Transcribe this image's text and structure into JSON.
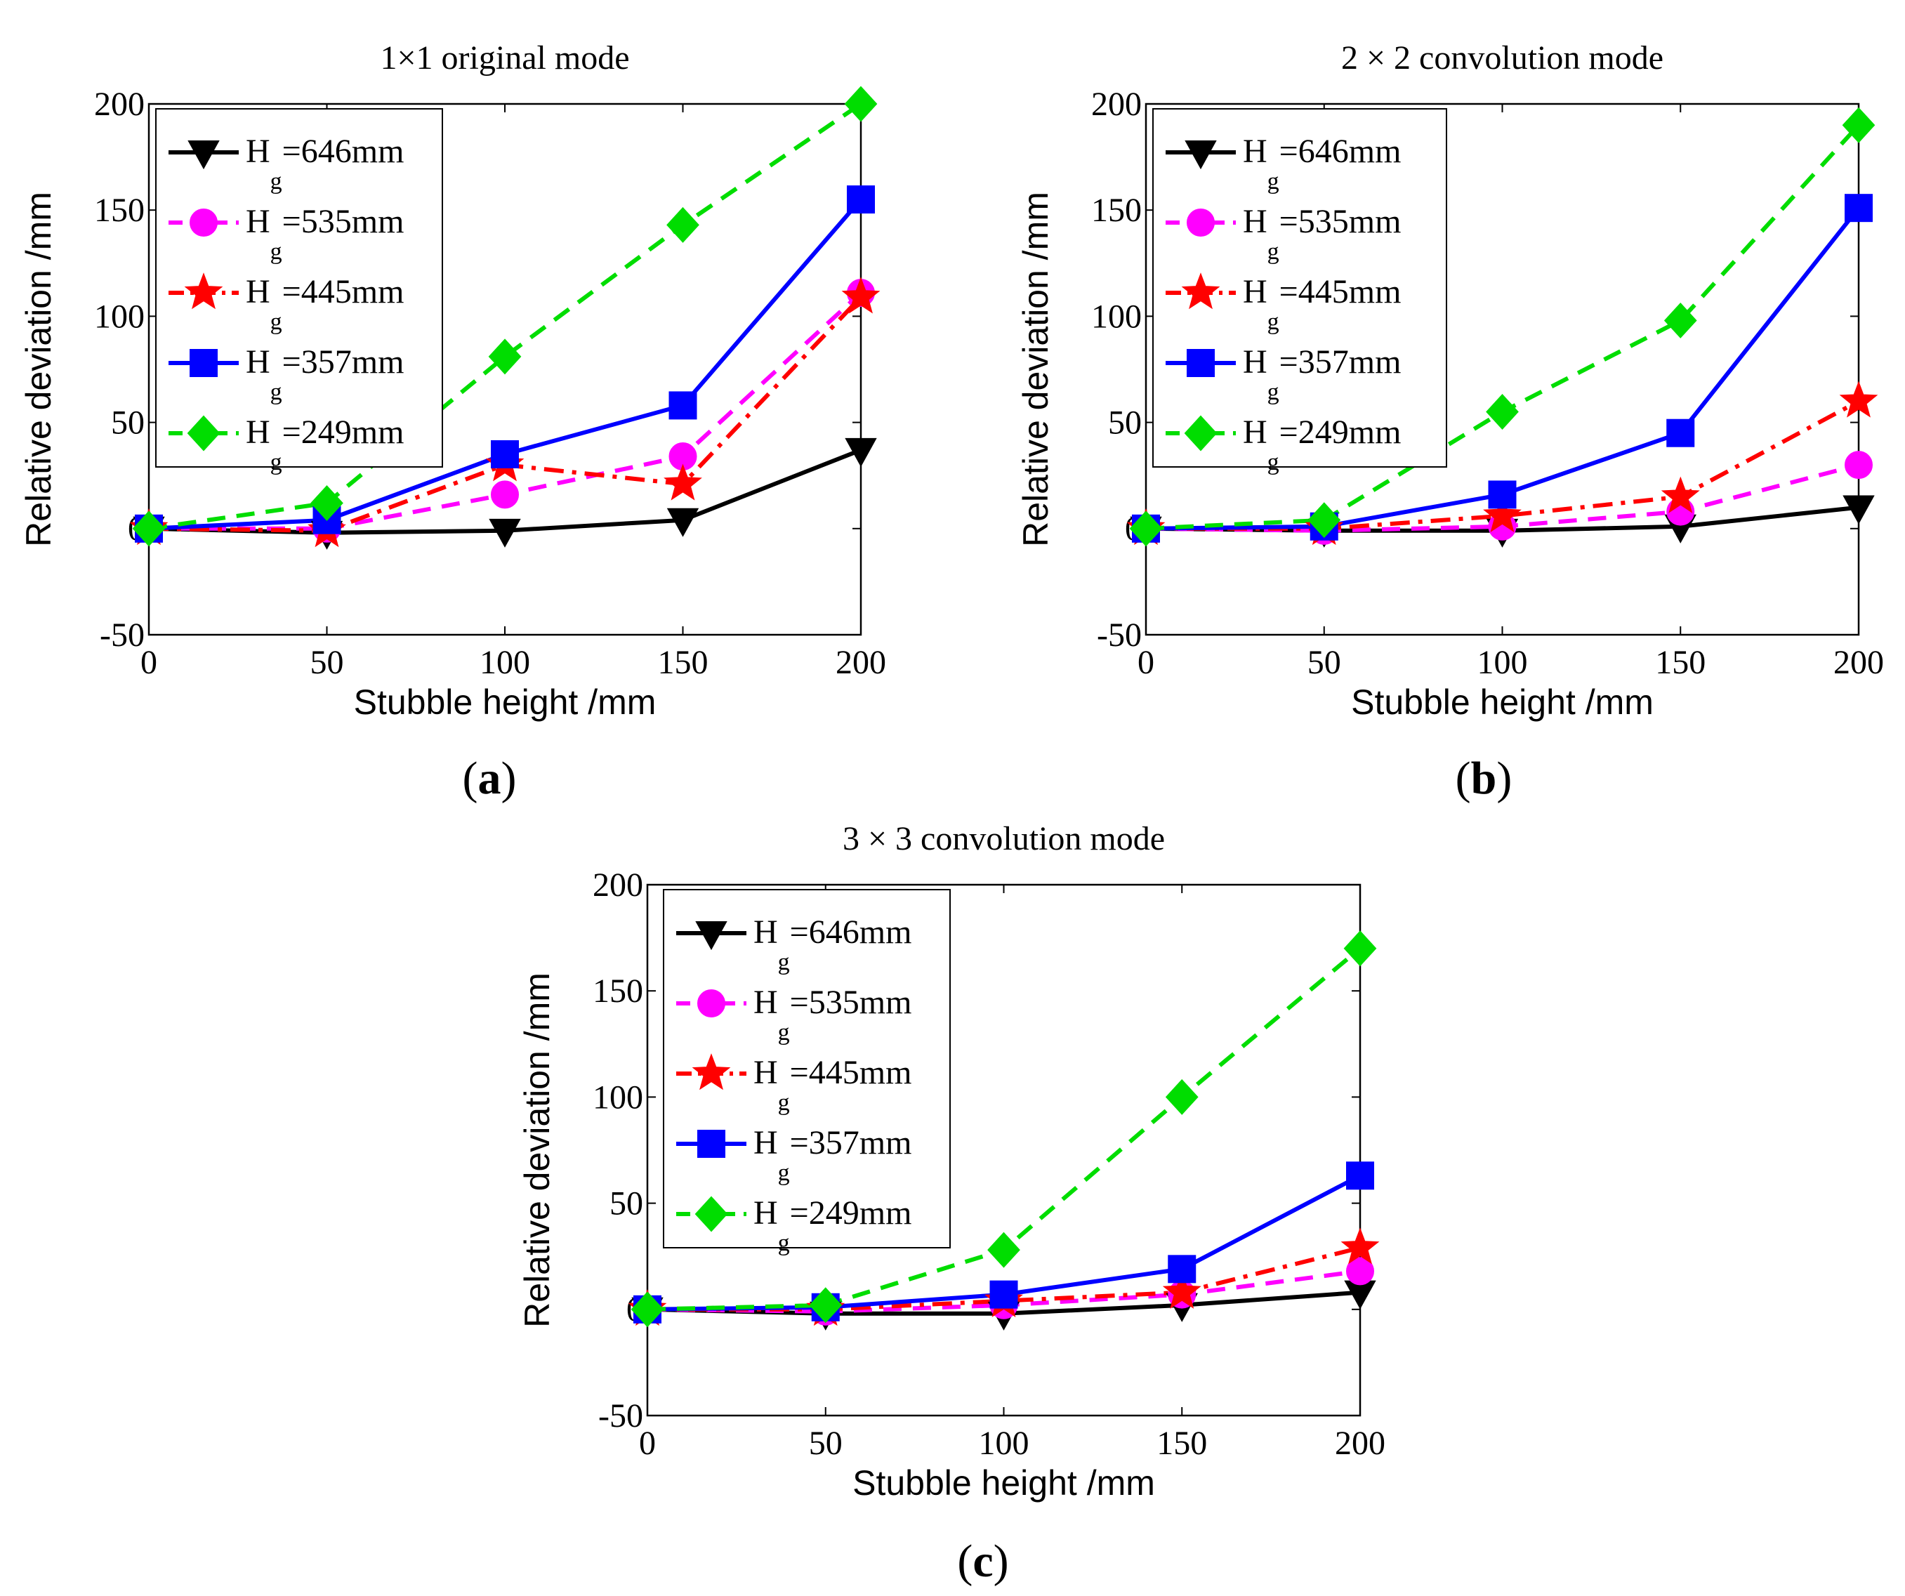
{
  "chart_data": [
    {
      "panel": "a",
      "panel_label": "a",
      "type": "line",
      "title": "1×1 original mode",
      "xlabel": "Stubble height /mm",
      "ylabel": "Relative deviation /mm",
      "xlim": [
        0,
        200
      ],
      "ylim": [
        -50,
        200
      ],
      "xticks": [
        0,
        50,
        100,
        150,
        200
      ],
      "yticks": [
        -50,
        0,
        50,
        100,
        150,
        200
      ],
      "x": [
        0,
        50,
        100,
        150,
        200
      ],
      "legend": "top-left",
      "series": [
        {
          "name": "646mm",
          "color": "#000000",
          "marker": "triangle-down",
          "dash": "solid",
          "values": [
            0,
            -2,
            -1,
            4,
            37
          ]
        },
        {
          "name": "535mm",
          "color": "#ff00ff",
          "marker": "circle",
          "dash": "dashed",
          "values": [
            0,
            0,
            16,
            34,
            111
          ]
        },
        {
          "name": "445mm",
          "color": "#ff0000",
          "marker": "star",
          "dash": "dashdot",
          "values": [
            0,
            -1,
            30,
            21,
            109
          ]
        },
        {
          "name": "357mm",
          "color": "#0000ff",
          "marker": "square",
          "dash": "solid",
          "values": [
            0,
            4,
            35,
            58,
            155
          ]
        },
        {
          "name": "249mm",
          "color": "#00dd00",
          "marker": "diamond",
          "dash": "dashed",
          "values": [
            0,
            12,
            81,
            143,
            200
          ]
        }
      ]
    },
    {
      "panel": "b",
      "panel_label": "b",
      "type": "line",
      "title": "2 × 2 convolution mode",
      "xlabel": "Stubble height /mm",
      "ylabel": "Relative deviation /mm",
      "xlim": [
        0,
        200
      ],
      "ylim": [
        -50,
        200
      ],
      "xticks": [
        0,
        50,
        100,
        150,
        200
      ],
      "yticks": [
        -50,
        0,
        50,
        100,
        150,
        200
      ],
      "x": [
        0,
        50,
        100,
        150,
        200
      ],
      "legend": "top-left",
      "series": [
        {
          "name": "646mm",
          "color": "#000000",
          "marker": "triangle-down",
          "dash": "solid",
          "values": [
            0,
            -1,
            -1,
            1,
            10
          ]
        },
        {
          "name": "535mm",
          "color": "#ff00ff",
          "marker": "circle",
          "dash": "dashed",
          "values": [
            0,
            -1,
            1,
            8,
            30
          ]
        },
        {
          "name": "445mm",
          "color": "#ff0000",
          "marker": "star",
          "dash": "dashdot",
          "values": [
            0,
            0,
            6,
            15,
            60
          ]
        },
        {
          "name": "357mm",
          "color": "#0000ff",
          "marker": "square",
          "dash": "solid",
          "values": [
            0,
            1,
            16,
            45,
            151
          ]
        },
        {
          "name": "249mm",
          "color": "#00dd00",
          "marker": "diamond",
          "dash": "dashed",
          "values": [
            0,
            4,
            55,
            98,
            190
          ]
        }
      ]
    },
    {
      "panel": "c",
      "panel_label": "c",
      "type": "line",
      "title": "3 × 3 convolution mode",
      "xlabel": "Stubble height /mm",
      "ylabel": "Relative deviation /mm",
      "xlim": [
        0,
        200
      ],
      "ylim": [
        -50,
        200
      ],
      "xticks": [
        0,
        50,
        100,
        150,
        200
      ],
      "yticks": [
        -50,
        0,
        50,
        100,
        150,
        200
      ],
      "x": [
        0,
        50,
        100,
        150,
        200
      ],
      "legend": "top-left",
      "series": [
        {
          "name": "646mm",
          "color": "#000000",
          "marker": "triangle-down",
          "dash": "solid",
          "values": [
            0,
            -2,
            -2,
            2,
            8
          ]
        },
        {
          "name": "535mm",
          "color": "#ff00ff",
          "marker": "circle",
          "dash": "dashed",
          "values": [
            0,
            -1,
            2,
            7,
            18
          ]
        },
        {
          "name": "445mm",
          "color": "#ff0000",
          "marker": "star",
          "dash": "dashdot",
          "values": [
            0,
            0,
            4,
            8,
            29
          ]
        },
        {
          "name": "357mm",
          "color": "#0000ff",
          "marker": "square",
          "dash": "solid",
          "values": [
            0,
            1,
            7,
            19,
            63
          ]
        },
        {
          "name": "249mm",
          "color": "#00dd00",
          "marker": "diamond",
          "dash": "dashed",
          "values": [
            0,
            2,
            28,
            100,
            170
          ]
        }
      ]
    }
  ],
  "legend_prefix": "H",
  "legend_subscript": "g",
  "legend_separator": "="
}
